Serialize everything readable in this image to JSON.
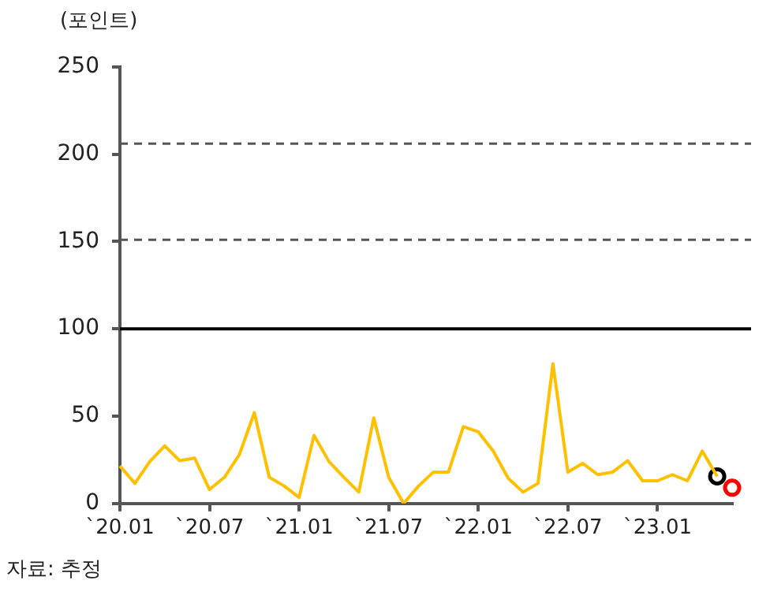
{
  "chart_data": {
    "type": "line",
    "ylabel": "(포인트)",
    "annotations": [
      "자료: 추정"
    ],
    "categories": [
      "`20.01",
      null,
      null,
      null,
      null,
      null,
      "`20.07",
      null,
      null,
      null,
      null,
      null,
      "`21.01",
      null,
      null,
      null,
      null,
      null,
      "`21.07",
      null,
      null,
      null,
      null,
      null,
      "`22.01",
      null,
      null,
      null,
      null,
      null,
      "`22.07",
      null,
      null,
      null,
      null,
      null,
      "`23.01",
      null,
      null,
      null,
      null,
      null
    ],
    "series": [
      {
        "color": "#ffc000",
        "marker": "none",
        "values": [
          21.5,
          11.5,
          24,
          33,
          24.5,
          26,
          8,
          15,
          28,
          52,
          15,
          10,
          3.5,
          39,
          24,
          15,
          6.5,
          49,
          15,
          0,
          10,
          18,
          18,
          44,
          41,
          30,
          14.5,
          6.5,
          11.5,
          80,
          18,
          23,
          16.5,
          18,
          24.5,
          13,
          13,
          16.5,
          13,
          30,
          15.5,
          null
        ]
      },
      {
        "type": "scatter",
        "color": "#000000",
        "marker": "circle",
        "values": [
          null,
          null,
          null,
          null,
          null,
          null,
          null,
          null,
          null,
          null,
          null,
          null,
          null,
          null,
          null,
          null,
          null,
          null,
          null,
          null,
          null,
          null,
          null,
          null,
          null,
          null,
          null,
          null,
          null,
          null,
          null,
          null,
          null,
          null,
          null,
          null,
          null,
          null,
          null,
          null,
          15.5,
          null
        ]
      },
      {
        "type": "scatter",
        "color": "#ff0000",
        "marker": "circle",
        "values": [
          null,
          null,
          null,
          null,
          null,
          null,
          null,
          null,
          null,
          null,
          null,
          null,
          null,
          null,
          null,
          null,
          null,
          null,
          null,
          null,
          null,
          null,
          null,
          null,
          null,
          null,
          null,
          null,
          null,
          null,
          null,
          null,
          null,
          null,
          null,
          null,
          null,
          null,
          null,
          null,
          null,
          9
        ]
      }
    ],
    "ylim": [
      0,
      250
    ],
    "yticks": [
      0,
      50,
      100,
      150,
      200,
      250
    ],
    "grid": false,
    "legend": false,
    "ref_lines": [
      {
        "axis": "y",
        "value": 100,
        "color": "#000000",
        "line_style": "solid"
      },
      {
        "axis": "y",
        "value": 151,
        "color": "#555555",
        "line_style": "dashed"
      },
      {
        "axis": "y",
        "value": 206,
        "color": "#555555",
        "line_style": "dashed"
      }
    ]
  }
}
